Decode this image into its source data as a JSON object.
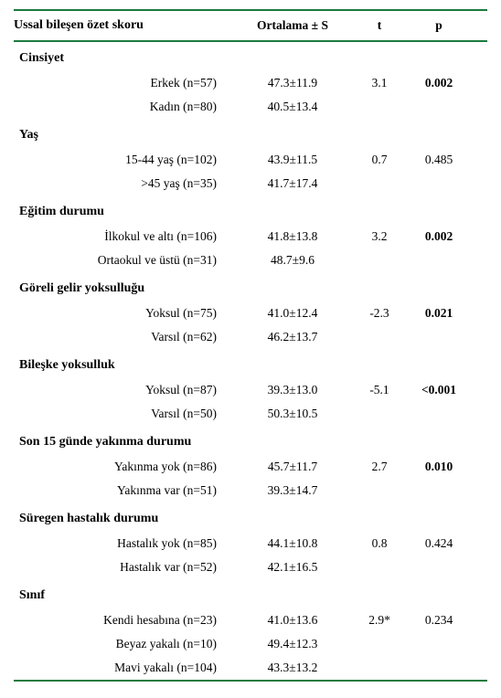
{
  "headers": {
    "label": "Ussal bileşen özet skoru",
    "mean": "Ortalama ± S",
    "t": "t",
    "p": "p"
  },
  "groups": [
    {
      "title": "Cinsiyet",
      "rows": [
        {
          "label": "Erkek (n=57)",
          "mean": "47.3±11.9",
          "t": "3.1",
          "p": "0.002",
          "p_bold": true
        },
        {
          "label": "Kadın (n=80)",
          "mean": "40.5±13.4",
          "t": "",
          "p": ""
        }
      ]
    },
    {
      "title": "Yaş",
      "rows": [
        {
          "label": "15-44 yaş (n=102)",
          "mean": "43.9±11.5",
          "t": "0.7",
          "p": "0.485",
          "p_bold": false
        },
        {
          "label": ">45 yaş (n=35)",
          "mean": "41.7±17.4",
          "t": "",
          "p": ""
        }
      ]
    },
    {
      "title": "Eğitim durumu",
      "rows": [
        {
          "label": "İlkokul ve altı (n=106)",
          "mean": "41.8±13.8",
          "t": "3.2",
          "p": "0.002",
          "p_bold": true
        },
        {
          "label": "Ortaokul ve üstü (n=31)",
          "mean": "48.7±9.6",
          "t": "",
          "p": ""
        }
      ]
    },
    {
      "title": "Göreli gelir yoksulluğu",
      "rows": [
        {
          "label": "Yoksul (n=75)",
          "mean": "41.0±12.4",
          "t": "-2.3",
          "p": "0.021",
          "p_bold": true
        },
        {
          "label": "Varsıl (n=62)",
          "mean": "46.2±13.7",
          "t": "",
          "p": ""
        }
      ]
    },
    {
      "title": "Bileşke yoksulluk",
      "rows": [
        {
          "label": "Yoksul (n=87)",
          "mean": "39.3±13.0",
          "t": "-5.1",
          "p": "<0.001",
          "p_bold": true
        },
        {
          "label": "Varsıl (n=50)",
          "mean": "50.3±10.5",
          "t": "",
          "p": ""
        }
      ]
    },
    {
      "title": "Son 15 günde yakınma durumu",
      "rows": [
        {
          "label": "Yakınma yok (n=86)",
          "mean": "45.7±11.7",
          "t": "2.7",
          "p": "0.010",
          "p_bold": true
        },
        {
          "label": "Yakınma var (n=51)",
          "mean": "39.3±14.7",
          "t": "",
          "p": ""
        }
      ]
    },
    {
      "title": "Süregen hastalık durumu",
      "rows": [
        {
          "label": "Hastalık yok (n=85)",
          "mean": "44.1±10.8",
          "t": "0.8",
          "p": "0.424",
          "p_bold": false
        },
        {
          "label": "Hastalık var (n=52)",
          "mean": "42.1±16.5",
          "t": "",
          "p": ""
        }
      ]
    },
    {
      "title": "Sınıf",
      "rows": [
        {
          "label": "Kendi hesabına (n=23)",
          "mean": "41.0±13.6",
          "t": "2.9*",
          "p": "0.234",
          "p_bold": false
        },
        {
          "label": "Beyaz yakalı (n=10)",
          "mean": "49.4±12.3",
          "t": "",
          "p": ""
        },
        {
          "label": "Mavi yakalı (n=104)",
          "mean": "43.3±13.2",
          "t": "",
          "p": ""
        }
      ]
    }
  ]
}
